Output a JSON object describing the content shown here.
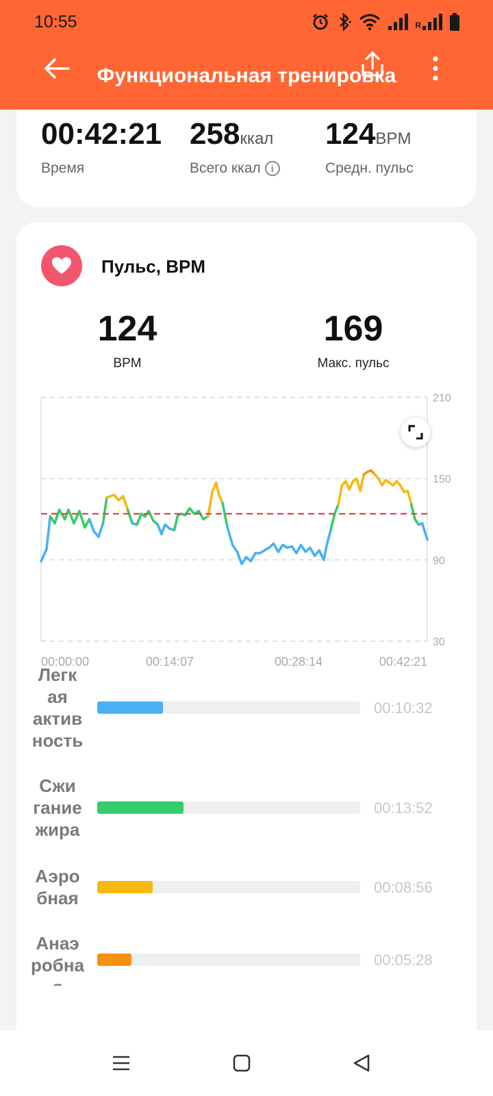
{
  "status_bar": {
    "time": "10:55",
    "icons": [
      "alarm-icon",
      "bluetooth-icon",
      "wifi-icon",
      "signal-icon",
      "signal-roaming-icon",
      "battery-icon"
    ],
    "roaming_label": "R"
  },
  "toolbar": {
    "title": "Функциональная тренировка",
    "icons": [
      "back-arrow-icon",
      "share-icon",
      "more-vertical-icon"
    ]
  },
  "summary": {
    "time": {
      "value": "00:42:21",
      "label": "Время"
    },
    "calories": {
      "value": "258",
      "unit": "ккал",
      "label": "Всего ккал"
    },
    "avg_hr": {
      "value": "124",
      "unit": "BPM",
      "label": "Средн. пульс"
    }
  },
  "heart_rate": {
    "title": "Пульс, BPM",
    "avg": {
      "value": "124",
      "label": "BPM"
    },
    "max": {
      "value": "169",
      "label": "Макс. пульс"
    }
  },
  "chart_data": {
    "type": "line",
    "title": "",
    "xlabel": "",
    "ylabel": "",
    "x_ticks": [
      "00:00:00",
      "00:14:07",
      "00:28:14",
      "00:42:21"
    ],
    "y_ticks": [
      30,
      90,
      150,
      210
    ],
    "ylim": [
      30,
      210
    ],
    "x_range_minutes": [
      0,
      42.35
    ],
    "reference_line": {
      "value": 124,
      "color": "#e8474f",
      "style": "dashed"
    },
    "grid": "dashed horizontal at y ticks",
    "zone_colors": {
      "light": "#4ab0f5",
      "fat_burn": "#35cc6a",
      "aerobic": "#f7b911",
      "anaerobic": "#f5900f"
    },
    "zone_thresholds": [
      117,
      130,
      152
    ],
    "series": [
      {
        "values": [
          [
            0,
            89
          ],
          [
            0.6,
            98
          ],
          [
            1,
            122
          ],
          [
            1.5,
            117
          ],
          [
            2,
            127
          ],
          [
            2.6,
            120
          ],
          [
            3,
            127
          ],
          [
            3.6,
            117
          ],
          [
            4.2,
            126
          ],
          [
            4.8,
            114
          ],
          [
            5.3,
            120
          ],
          [
            5.8,
            111
          ],
          [
            6.3,
            107
          ],
          [
            6.8,
            117
          ],
          [
            7.2,
            136
          ],
          [
            7.6,
            137
          ],
          [
            8,
            138
          ],
          [
            8.5,
            134
          ],
          [
            9,
            137
          ],
          [
            9.5,
            127
          ],
          [
            10,
            117
          ],
          [
            10.5,
            116
          ],
          [
            11,
            124
          ],
          [
            11.4,
            122
          ],
          [
            11.8,
            126
          ],
          [
            12.3,
            119
          ],
          [
            12.8,
            116
          ],
          [
            13.2,
            109
          ],
          [
            13.6,
            116
          ],
          [
            14.1,
            113
          ],
          [
            14.6,
            112
          ],
          [
            15,
            123
          ],
          [
            15.4,
            124
          ],
          [
            15.8,
            123
          ],
          [
            16.3,
            128
          ],
          [
            16.8,
            124
          ],
          [
            17.3,
            126
          ],
          [
            17.8,
            120
          ],
          [
            18.3,
            122
          ],
          [
            18.8,
            141
          ],
          [
            19.2,
            147
          ],
          [
            19.5,
            138
          ],
          [
            19.9,
            132
          ],
          [
            20.4,
            115
          ],
          [
            21,
            101
          ],
          [
            21.5,
            96
          ],
          [
            22,
            87
          ],
          [
            22.5,
            92
          ],
          [
            23,
            89
          ],
          [
            23.5,
            95
          ],
          [
            24,
            95
          ],
          [
            24.5,
            97
          ],
          [
            25,
            99
          ],
          [
            25.5,
            102
          ],
          [
            26,
            96
          ],
          [
            26.5,
            101
          ],
          [
            27,
            99
          ],
          [
            27.5,
            100
          ],
          [
            28,
            95
          ],
          [
            28.5,
            101
          ],
          [
            29,
            96
          ],
          [
            29.5,
            99
          ],
          [
            30,
            93
          ],
          [
            30.5,
            97
          ],
          [
            31,
            90
          ],
          [
            31.4,
            103
          ],
          [
            31.8,
            113
          ],
          [
            32.2,
            124
          ],
          [
            32.6,
            131
          ],
          [
            33,
            145
          ],
          [
            33.4,
            148
          ],
          [
            33.8,
            142
          ],
          [
            34.2,
            148
          ],
          [
            34.6,
            150
          ],
          [
            35,
            141
          ],
          [
            35.4,
            153
          ],
          [
            35.8,
            155
          ],
          [
            36.2,
            156
          ],
          [
            36.6,
            153
          ],
          [
            37,
            150
          ],
          [
            37.4,
            145
          ],
          [
            37.8,
            149
          ],
          [
            38.2,
            147
          ],
          [
            38.6,
            145
          ],
          [
            39,
            148
          ],
          [
            39.4,
            145
          ],
          [
            39.8,
            140
          ],
          [
            40.2,
            141
          ],
          [
            40.6,
            131
          ],
          [
            41,
            120
          ],
          [
            41.4,
            116
          ],
          [
            41.8,
            117
          ],
          [
            42.35,
            105
          ]
        ]
      }
    ]
  },
  "zones": [
    {
      "label": "Легкая активность",
      "time": "00:10:32",
      "fraction": 0.249,
      "color": "#4ab0f5"
    },
    {
      "label": "Сжигание жира",
      "time": "00:13:52",
      "fraction": 0.327,
      "color": "#35cc6a"
    },
    {
      "label": "Аэробная",
      "time": "00:08:56",
      "fraction": 0.211,
      "color": "#f7b911"
    },
    {
      "label": "Анаэробная",
      "time": "00:05:28",
      "fraction": 0.129,
      "color": "#f5900f"
    }
  ],
  "nav_bar": {
    "icons": [
      "menu-icon",
      "home-square-icon",
      "back-triangle-icon"
    ]
  }
}
